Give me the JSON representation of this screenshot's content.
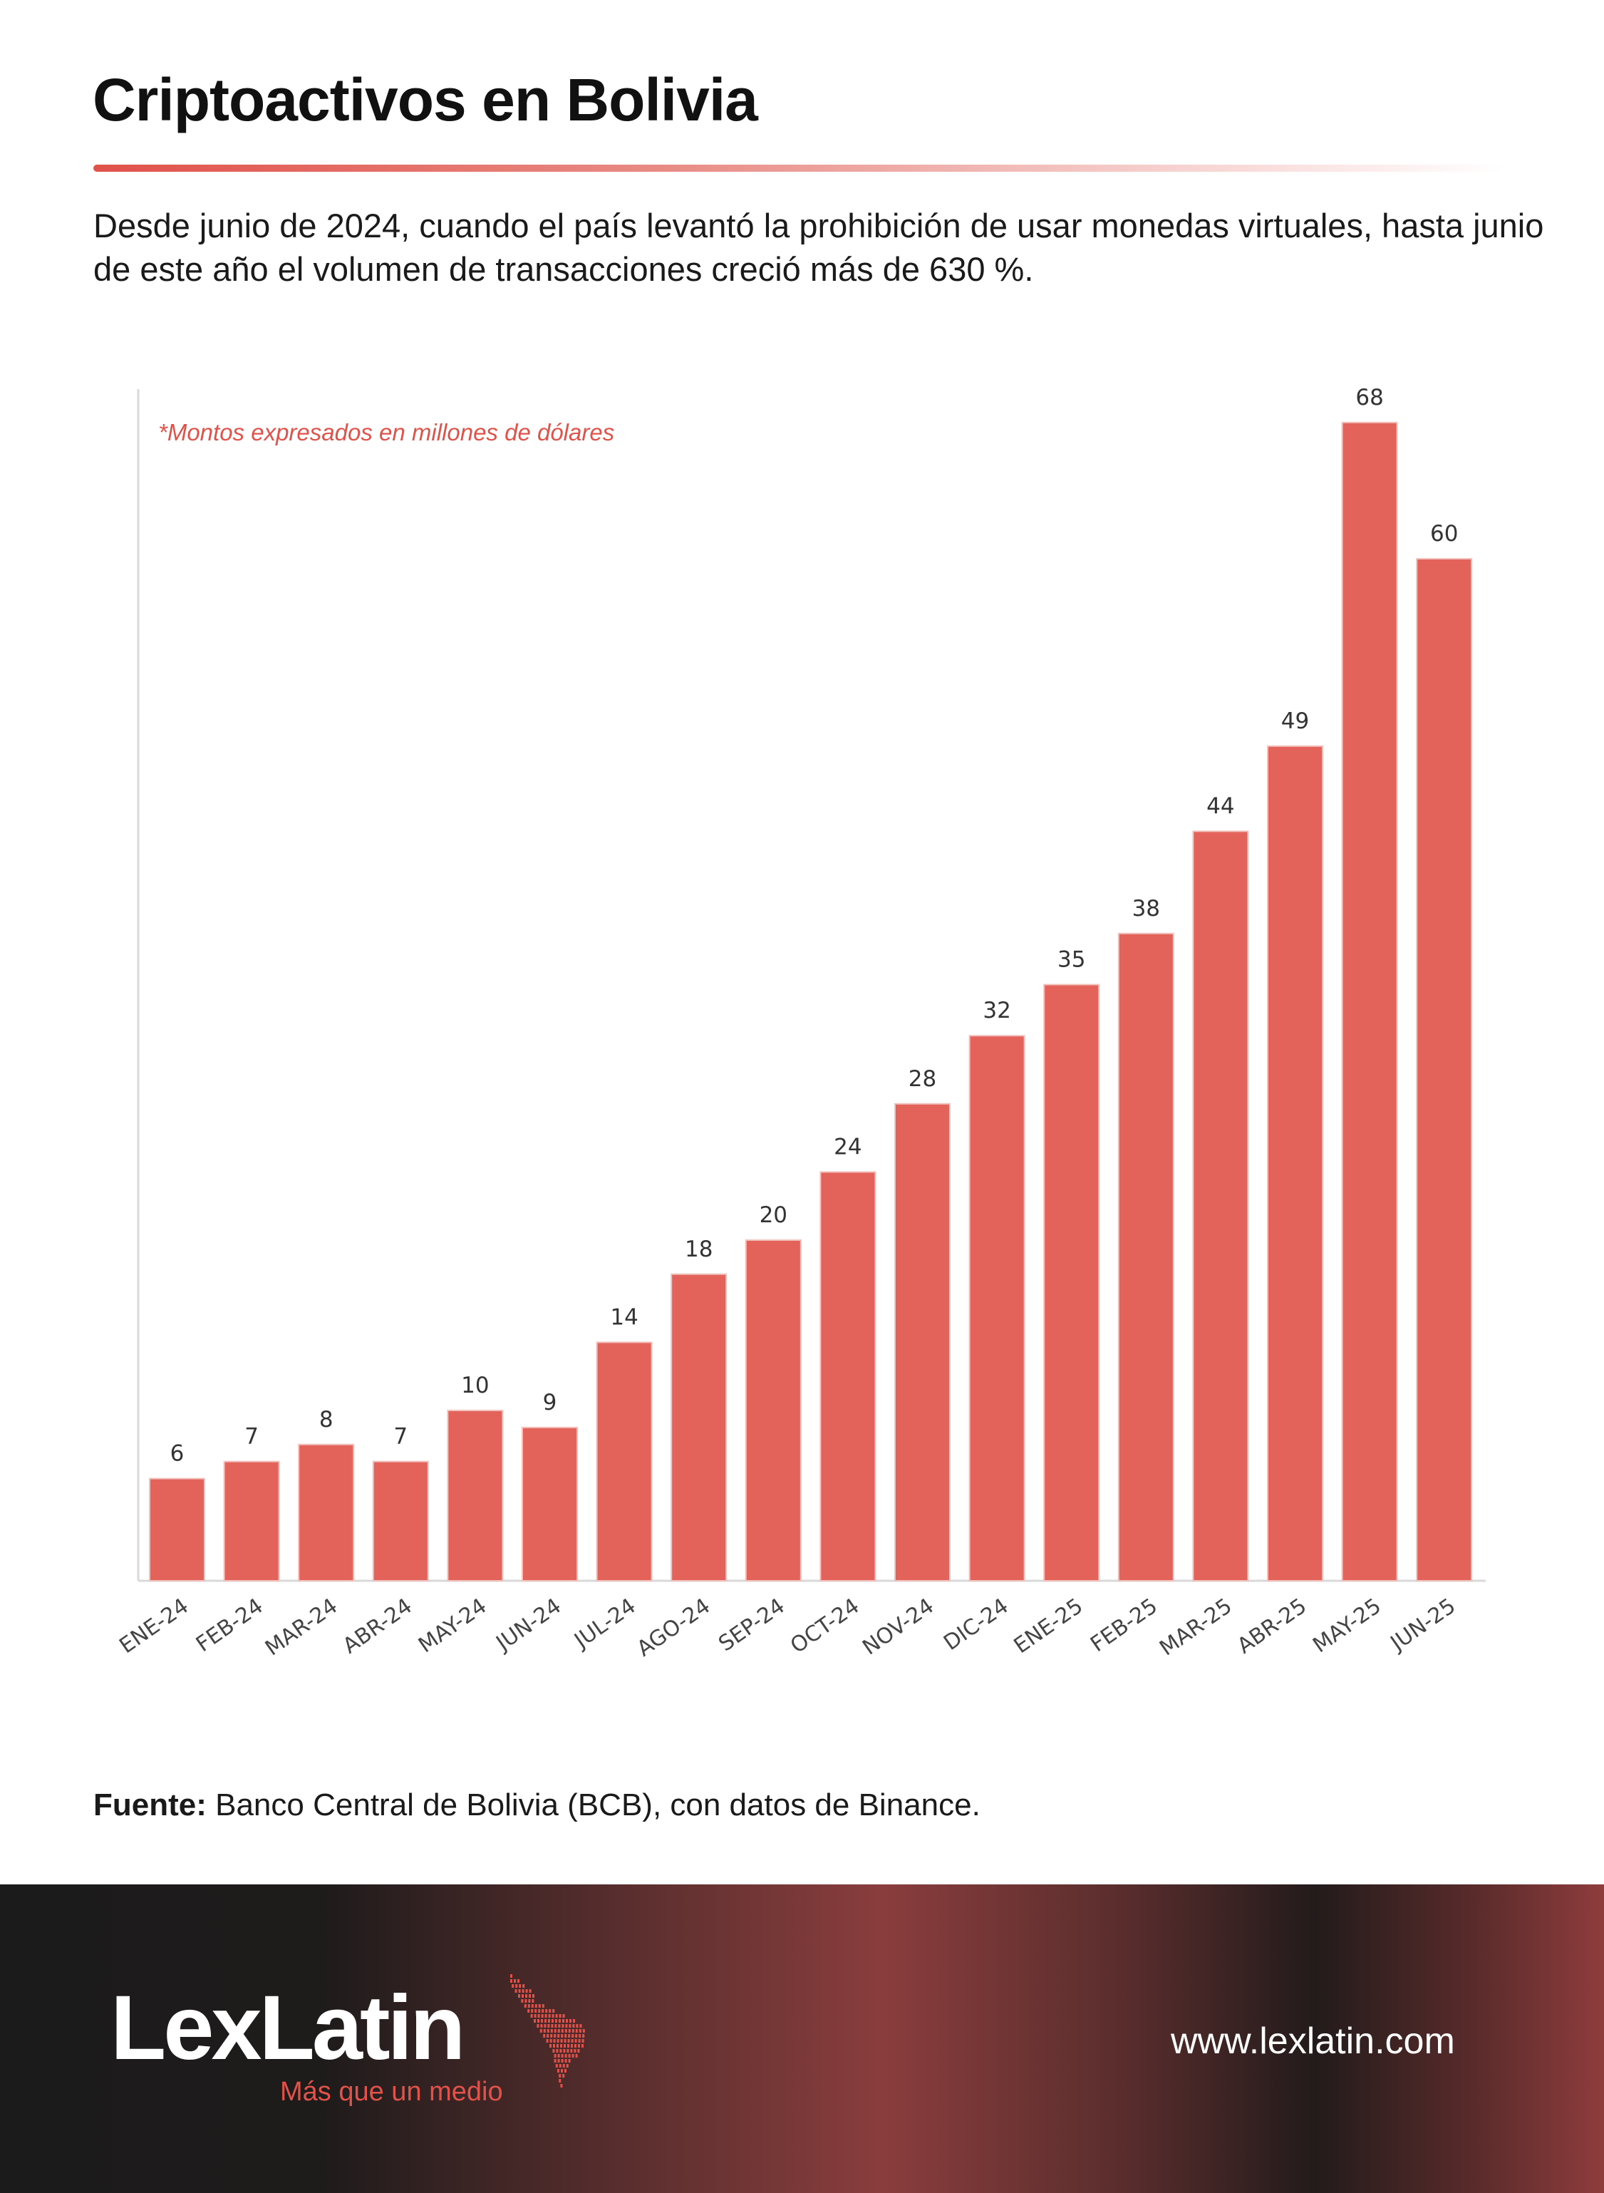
{
  "header": {
    "title": "Criptoactivos en Bolivia",
    "subtitle": "Desde junio de 2024, cuando el país levantó la prohibición de usar monedas virtuales, hasta junio de este año el volumen de transacciones creció más de 630 %."
  },
  "chart_data": {
    "type": "bar",
    "title": "",
    "note": "*Montos expresados en millones de dólares",
    "categories": [
      "ENE-24",
      "FEB-24",
      "MAR-24",
      "ABR-24",
      "MAY-24",
      "JUN-24",
      "JUL-24",
      "AGO-24",
      "SEP-24",
      "OCT-24",
      "NOV-24",
      "DIC-24",
      "ENE-25",
      "FEB-25",
      "MAR-25",
      "ABR-25",
      "MAY-25",
      "JUN-25"
    ],
    "values": [
      6,
      7,
      8,
      7,
      10,
      9,
      14,
      18,
      20,
      24,
      28,
      32,
      35,
      38,
      44,
      49,
      68,
      60
    ],
    "ylim": [
      0,
      70
    ],
    "grid": false,
    "bar_color": "#e3625a"
  },
  "source": {
    "label": "Fuente:",
    "text": " Banco Central de Bolivia (BCB), con datos de Binance."
  },
  "footer": {
    "logo": "LexLatin",
    "tagline": "Más que un medio",
    "url": "www.lexlatin.com"
  }
}
